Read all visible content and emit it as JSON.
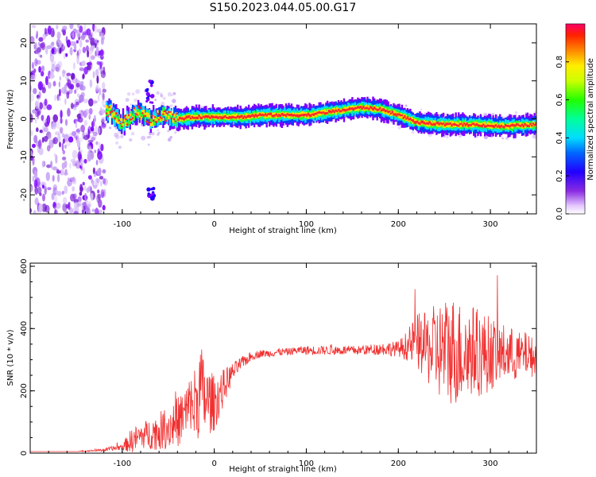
{
  "title": "S150.2023.044.05.00.G17",
  "colors": {
    "snr_line": "#f03030",
    "ridge_core": "#ff2a2a",
    "ridge_edge": "#7a00ff",
    "noise": "#8a2be2"
  },
  "chart_data": [
    {
      "type": "heatmap",
      "name": "spectrogram",
      "xlabel": "Height of straight line (km)",
      "ylabel": "Frequency (Hz)",
      "xlim": [
        -200,
        350
      ],
      "ylim": [
        -25,
        25
      ],
      "xticks": [
        -100,
        0,
        100,
        200,
        300
      ],
      "yticks": [
        -20,
        -10,
        0,
        10,
        20
      ],
      "colorbar": {
        "label": "Normalized spectral amplitude",
        "range": [
          0,
          1
        ],
        "ticks": [
          0.0,
          0.2,
          0.4,
          0.6,
          0.8
        ],
        "tick_labels": [
          "0.0",
          "0.2",
          "0.4",
          "0.6",
          "0.8"
        ],
        "colormap": "rainbow"
      },
      "noise_region_x": [
        -200,
        -118
      ],
      "ridge": [
        {
          "x": -115,
          "y": 2
        },
        {
          "x": -100,
          "y": -1
        },
        {
          "x": -85,
          "y": 2
        },
        {
          "x": -70,
          "y": 0
        },
        {
          "x": -55,
          "y": 1
        },
        {
          "x": -40,
          "y": 0
        },
        {
          "x": -20,
          "y": 0.5
        },
        {
          "x": 0,
          "y": 0.5
        },
        {
          "x": 30,
          "y": 0.5
        },
        {
          "x": 50,
          "y": 1
        },
        {
          "x": 80,
          "y": 1
        },
        {
          "x": 100,
          "y": 1
        },
        {
          "x": 130,
          "y": 2
        },
        {
          "x": 160,
          "y": 3
        },
        {
          "x": 180,
          "y": 2.5
        },
        {
          "x": 200,
          "y": 1
        },
        {
          "x": 220,
          "y": -1
        },
        {
          "x": 250,
          "y": -1.5
        },
        {
          "x": 280,
          "y": -1.5
        },
        {
          "x": 310,
          "y": -2
        },
        {
          "x": 350,
          "y": -1.5
        }
      ],
      "side_features": [
        {
          "x": -70,
          "y_range": [
            4,
            10
          ]
        },
        {
          "x": -68,
          "y_range": [
            -21,
            -18
          ]
        }
      ]
    },
    {
      "type": "line",
      "name": "snr",
      "xlabel": "Height of straight line (km)",
      "ylabel": "SNR (10 * v/v)",
      "xlim": [
        -200,
        350
      ],
      "ylim": [
        0,
        610
      ],
      "xticks": [
        -100,
        0,
        100,
        200,
        300
      ],
      "yticks": [
        0,
        200,
        400,
        600
      ],
      "series": [
        {
          "x": [
            -200,
            -150,
            -120,
            -100,
            -90,
            -80,
            -60,
            -40,
            -30,
            -20,
            -15,
            -10,
            0,
            10,
            20,
            30,
            40,
            50,
            60,
            70,
            80,
            90,
            100,
            120,
            140,
            160,
            180,
            200,
            210,
            220,
            230,
            240,
            250,
            260,
            270,
            280,
            290,
            300,
            310,
            320,
            330,
            340,
            350
          ],
          "y": [
            5,
            5,
            10,
            20,
            40,
            55,
            70,
            100,
            130,
            160,
            210,
            170,
            160,
            210,
            260,
            290,
            310,
            320,
            320,
            325,
            325,
            330,
            330,
            330,
            330,
            330,
            335,
            335,
            345,
            360,
            340,
            330,
            330,
            330,
            320,
            330,
            320,
            320,
            320,
            320,
            310,
            320,
            300
          ],
          "noise_amplitude": [
            0,
            0,
            5,
            10,
            40,
            40,
            60,
            80,
            100,
            130,
            150,
            120,
            90,
            60,
            30,
            20,
            15,
            12,
            12,
            12,
            12,
            12,
            15,
            15,
            15,
            15,
            20,
            25,
            50,
            90,
            110,
            150,
            170,
            180,
            160,
            150,
            140,
            120,
            100,
            90,
            80,
            70,
            60
          ]
        }
      ]
    }
  ]
}
